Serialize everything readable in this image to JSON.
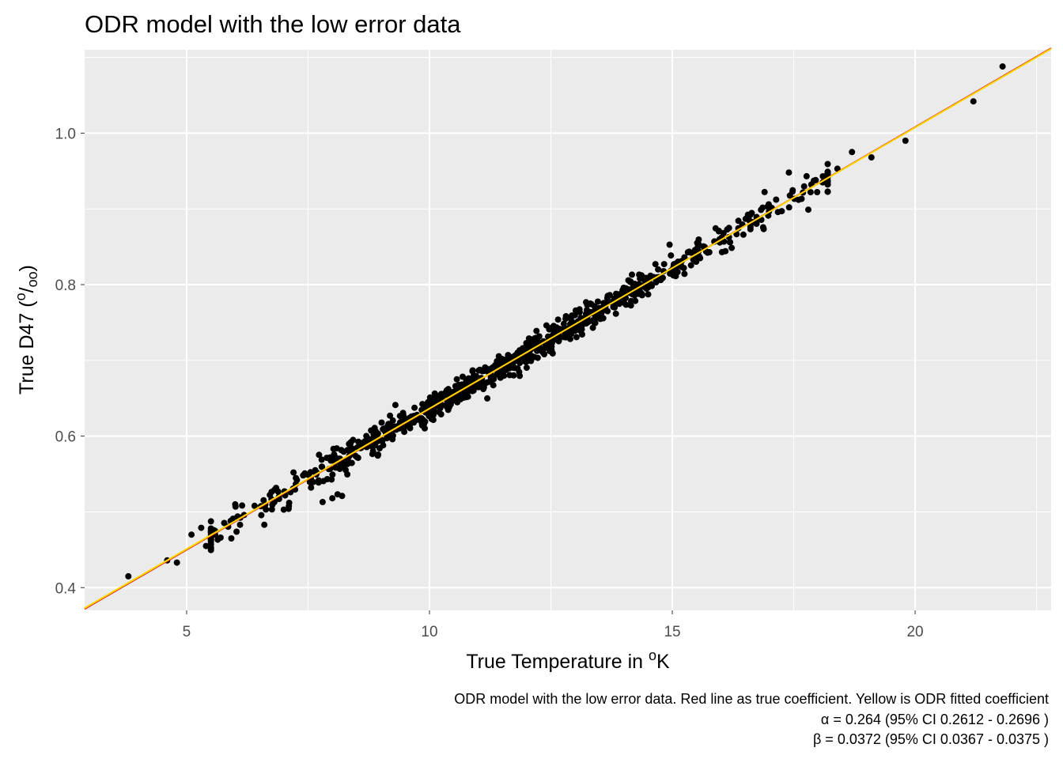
{
  "chart_data": {
    "type": "scatter",
    "title": "ODR model with the low error data",
    "xlabel": {
      "main": "True Temperature in ",
      "sup": "o",
      "tail": "K"
    },
    "ylabel": {
      "main": "True D47 (",
      "sup": "o",
      "sub": "oo",
      "tail": ")"
    },
    "xlim": [
      2.9,
      22.8
    ],
    "ylim": [
      0.37,
      1.11
    ],
    "x_ticks": [
      5,
      10,
      15,
      20
    ],
    "x_tick_labels": [
      "5",
      "10",
      "15",
      "20"
    ],
    "y_ticks": [
      0.4,
      0.6,
      0.8,
      1.0
    ],
    "y_tick_labels": [
      "0.4",
      "0.6",
      "0.8",
      "1.0"
    ],
    "grid": true,
    "background": "#ebebeb",
    "lines": [
      {
        "role": "true coefficient",
        "color": "#e31a1c",
        "intercept": 0.264,
        "slope": 0.0372
      },
      {
        "role": "ODR fitted coefficient",
        "color": "#ffd700",
        "intercept": 0.2654,
        "slope": 0.0371
      }
    ],
    "points": {
      "color": "#000000",
      "outliers": [
        [
          3.8,
          0.415
        ],
        [
          4.6,
          0.436
        ],
        [
          4.8,
          0.433
        ],
        [
          5.1,
          0.47
        ],
        [
          5.3,
          0.479
        ],
        [
          5.4,
          0.455
        ],
        [
          5.7,
          0.466
        ],
        [
          6.0,
          0.51
        ],
        [
          6.1,
          0.483
        ],
        [
          6.4,
          0.508
        ],
        [
          6.6,
          0.483
        ],
        [
          6.9,
          0.52
        ],
        [
          7.0,
          0.503
        ],
        [
          7.1,
          0.504
        ],
        [
          7.2,
          0.552
        ],
        [
          7.5,
          0.549
        ],
        [
          7.8,
          0.513
        ],
        [
          8.0,
          0.518
        ],
        [
          8.2,
          0.521
        ],
        [
          17.4,
          0.948
        ],
        [
          17.6,
          0.912
        ],
        [
          17.8,
          0.899
        ],
        [
          18.1,
          0.943
        ],
        [
          18.4,
          0.953
        ],
        [
          18.7,
          0.975
        ],
        [
          19.1,
          0.968
        ],
        [
          19.8,
          0.99
        ],
        [
          21.2,
          1.042
        ],
        [
          21.8,
          1.088
        ]
      ],
      "cluster": {
        "x_range": [
          5.5,
          18.2
        ],
        "count": 880,
        "scatter_sd": 0.009
      }
    },
    "caption": [
      "ODR model with the low error data. Red line as true coefficient. Yellow is ODR fitted coefficient",
      "α = 0.264 (95% CI 0.2612 - 0.2696 )",
      "β = 0.0372 (95% CI 0.0367 - 0.0375 )"
    ]
  }
}
